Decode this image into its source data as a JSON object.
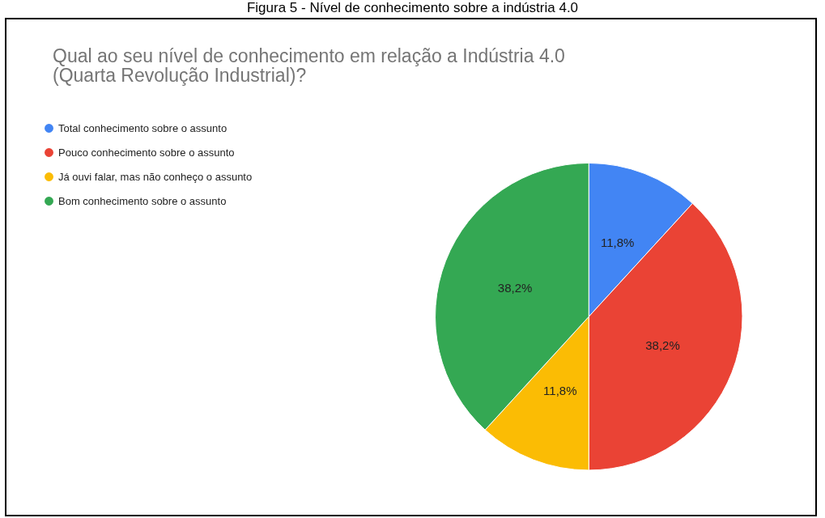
{
  "chart_data": {
    "type": "pie",
    "title": "Qual ao seu nível de conhecimento em relação a Indústria 4.0\n(Quarta Revolução Industrial)?",
    "annotations": [
      "Figura 5 - Nível de conhecimento sobre a indústria 4.0"
    ],
    "categories": [
      "Total conhecimento sobre o assunto",
      "Pouco conhecimento sobre o assunto",
      "Já ouvi falar, mas não conheço o assunto",
      "Bom conhecimento sobre o assunto"
    ],
    "values": [
      11.8,
      38.2,
      11.8,
      38.2
    ],
    "value_labels": [
      "11,8%",
      "38,2%",
      "11,8%",
      "38,2%"
    ],
    "colors": [
      "#4285f4",
      "#ea4335",
      "#fbbc04",
      "#34a853"
    ],
    "legend": "top left"
  }
}
